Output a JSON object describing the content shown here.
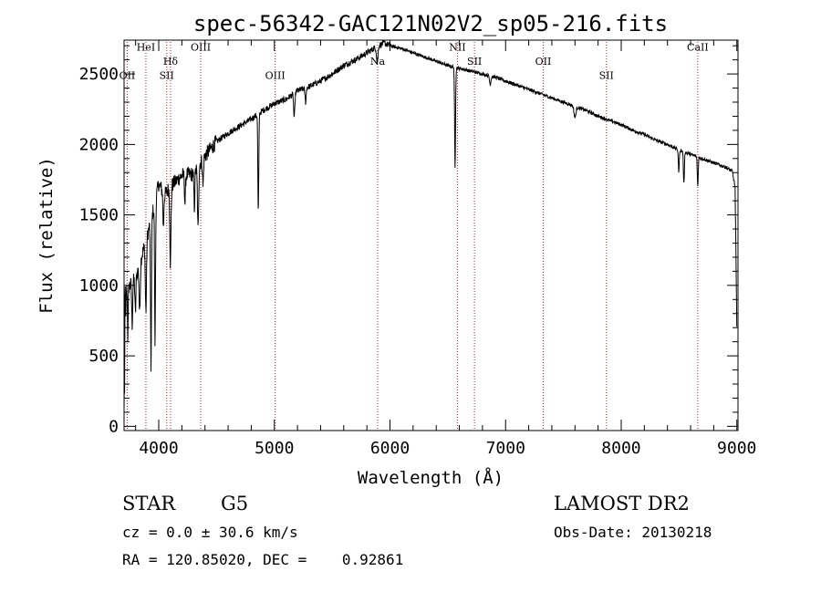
{
  "chart_data": {
    "type": "line",
    "title": "spec-56342-GAC121N02V2_sp05-216.fits",
    "xlabel": "Wavelength (Å)",
    "ylabel": "Flux (relative)",
    "xlim": [
      3700,
      9010
    ],
    "ylim": [
      -30,
      2740
    ],
    "xticks": [
      4000,
      5000,
      6000,
      7000,
      8000,
      9000
    ],
    "yticks": [
      0,
      500,
      1000,
      1500,
      2000,
      2500
    ],
    "grid": false,
    "line_color": "#000000",
    "marker_color": "#b22222",
    "continuum": [
      [
        3700,
        950
      ],
      [
        3800,
        1050
      ],
      [
        3900,
        1350
      ],
      [
        3960,
        1560
      ],
      [
        4000,
        1720
      ],
      [
        4050,
        1640
      ],
      [
        4100,
        1700
      ],
      [
        4200,
        1780
      ],
      [
        4300,
        1790
      ],
      [
        4400,
        1920
      ],
      [
        4500,
        2020
      ],
      [
        4600,
        2080
      ],
      [
        4700,
        2130
      ],
      [
        4800,
        2180
      ],
      [
        4900,
        2240
      ],
      [
        5000,
        2290
      ],
      [
        5100,
        2320
      ],
      [
        5200,
        2380
      ],
      [
        5300,
        2410
      ],
      [
        5400,
        2450
      ],
      [
        5500,
        2500
      ],
      [
        5600,
        2560
      ],
      [
        5700,
        2600
      ],
      [
        5800,
        2650
      ],
      [
        5900,
        2700
      ],
      [
        5950,
        2720
      ],
      [
        6000,
        2700
      ],
      [
        6100,
        2680
      ],
      [
        6200,
        2650
      ],
      [
        6300,
        2620
      ],
      [
        6400,
        2590
      ],
      [
        6500,
        2560
      ],
      [
        6600,
        2540
      ],
      [
        6700,
        2520
      ],
      [
        6800,
        2500
      ],
      [
        6900,
        2480
      ],
      [
        7000,
        2450
      ],
      [
        7100,
        2420
      ],
      [
        7200,
        2390
      ],
      [
        7300,
        2360
      ],
      [
        7400,
        2330
      ],
      [
        7500,
        2300
      ],
      [
        7600,
        2270
      ],
      [
        7700,
        2240
      ],
      [
        7800,
        2200
      ],
      [
        7900,
        2170
      ],
      [
        8000,
        2140
      ],
      [
        8100,
        2100
      ],
      [
        8200,
        2070
      ],
      [
        8300,
        2030
      ],
      [
        8400,
        2000
      ],
      [
        8500,
        1960
      ],
      [
        8600,
        1930
      ],
      [
        8700,
        1900
      ],
      [
        8800,
        1870
      ],
      [
        8900,
        1840
      ],
      [
        8960,
        1810
      ],
      [
        8985,
        1700
      ],
      [
        9000,
        700
      ]
    ],
    "absorption_lines": [
      [
        3715,
        220,
        2
      ],
      [
        3733,
        350,
        3
      ],
      [
        3770,
        300,
        4
      ],
      [
        3798,
        250,
        4
      ],
      [
        3835,
        350,
        5
      ],
      [
        3889,
        500,
        5
      ],
      [
        3933,
        1050,
        4
      ],
      [
        3968,
        1000,
        4
      ],
      [
        4040,
        250,
        4
      ],
      [
        4101,
        550,
        5
      ],
      [
        4227,
        200,
        4
      ],
      [
        4308,
        250,
        4
      ],
      [
        4340,
        450,
        5
      ],
      [
        4383,
        200,
        4
      ],
      [
        4861,
        700,
        4
      ],
      [
        5172,
        180,
        5
      ],
      [
        5270,
        100,
        5
      ],
      [
        5890,
        120,
        6
      ],
      [
        6563,
        720,
        4
      ],
      [
        6867,
        60,
        6
      ],
      [
        7600,
        80,
        8
      ],
      [
        8498,
        150,
        4
      ],
      [
        8542,
        230,
        4
      ],
      [
        8662,
        200,
        4
      ]
    ],
    "line_markers": [
      {
        "label": "OII",
        "x": 3727,
        "label_flux": 2465
      },
      {
        "label": "HeI",
        "x": 3889,
        "label_flux": 2665
      },
      {
        "label": "SII",
        "x": 4069,
        "label_flux": 2465
      },
      {
        "label": "Hδ",
        "x": 4102,
        "label_flux": 2565
      },
      {
        "label": "OIII",
        "x": 4363,
        "label_flux": 2665
      },
      {
        "label": "OIII",
        "x": 5007,
        "label_flux": 2465
      },
      {
        "label": "Na",
        "x": 5893,
        "label_flux": 2565
      },
      {
        "label": "NII",
        "x": 6583,
        "label_flux": 2665
      },
      {
        "label": "SII",
        "x": 6731,
        "label_flux": 2565
      },
      {
        "label": "OII",
        "x": 7325,
        "label_flux": 2565
      },
      {
        "label": "SII",
        "x": 7872,
        "label_flux": 2465
      },
      {
        "label": "CaII",
        "x": 8662,
        "label_flux": 2665
      }
    ]
  },
  "info": {
    "object_class": "STAR",
    "subclass": "G5",
    "survey": "LAMOST DR2",
    "redshift_line": "cz = 0.0 ± 30.6 km/s",
    "obs_date_line": "Obs-Date: 20130218",
    "coords_line": "RA = 120.85020, DEC =    0.92861"
  }
}
